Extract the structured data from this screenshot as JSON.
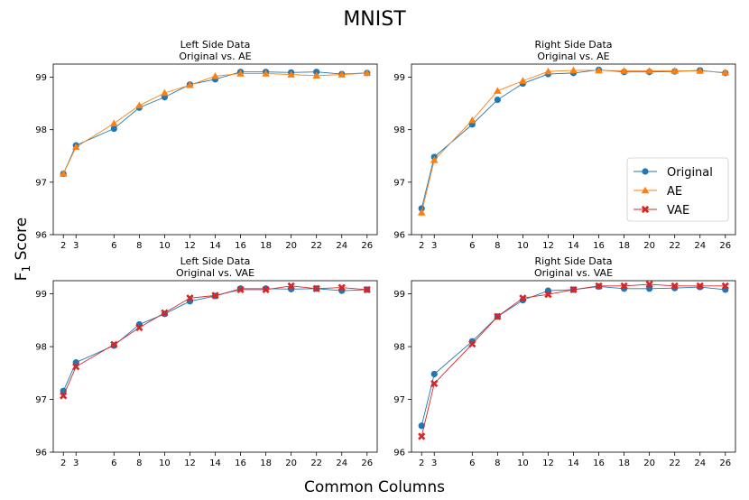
{
  "figure": {
    "title": "MNIST",
    "xlabel": "Common Columns",
    "ylabel_main": "F",
    "ylabel_sub": "1",
    "ylabel_rest": " Score"
  },
  "colors": {
    "Original": "#1f77b4",
    "AE": "#ff7f0e",
    "VAE": "#d62728"
  },
  "chart_data": [
    {
      "type": "line",
      "title_line1": "Left Side Data",
      "title_line2": "Original vs. AE",
      "x": [
        2,
        3,
        6,
        8,
        10,
        12,
        14,
        16,
        18,
        20,
        22,
        24,
        26
      ],
      "xticks": [
        2,
        3,
        6,
        8,
        10,
        12,
        14,
        16,
        18,
        20,
        22,
        24,
        26
      ],
      "xlim": [
        1.2,
        26.8
      ],
      "ylim": [
        96,
        99.25
      ],
      "yticks": [
        96,
        97,
        98,
        99
      ],
      "legend": false,
      "series": [
        {
          "name": "Original",
          "marker": "circle",
          "values": [
            97.16,
            97.7,
            98.02,
            98.42,
            98.62,
            98.86,
            98.96,
            99.1,
            99.1,
            99.09,
            99.1,
            99.06,
            99.08
          ]
        },
        {
          "name": "AE",
          "marker": "triangle",
          "values": [
            97.16,
            97.67,
            98.12,
            98.46,
            98.7,
            98.85,
            99.02,
            99.07,
            99.07,
            99.05,
            99.03,
            99.05,
            99.08
          ]
        }
      ]
    },
    {
      "type": "line",
      "title_line1": "Right Side Data",
      "title_line2": "Original vs. AE",
      "x": [
        2,
        3,
        6,
        8,
        10,
        12,
        14,
        16,
        18,
        20,
        22,
        24,
        26
      ],
      "xticks": [
        2,
        3,
        6,
        8,
        10,
        12,
        14,
        16,
        18,
        20,
        22,
        24,
        26
      ],
      "xlim": [
        1.2,
        26.8
      ],
      "ylim": [
        96,
        99.25
      ],
      "yticks": [
        96,
        97,
        98,
        99
      ],
      "legend": true,
      "series": [
        {
          "name": "Original",
          "marker": "circle",
          "values": [
            96.5,
            97.48,
            98.1,
            98.57,
            98.88,
            99.06,
            99.08,
            99.14,
            99.1,
            99.1,
            99.11,
            99.13,
            99.08
          ]
        },
        {
          "name": "AE",
          "marker": "triangle",
          "values": [
            96.42,
            97.42,
            98.18,
            98.74,
            98.93,
            99.11,
            99.13,
            99.13,
            99.12,
            99.12,
            99.12,
            99.12,
            99.09
          ]
        }
      ]
    },
    {
      "type": "line",
      "title_line1": "Left Side Data",
      "title_line2": "Original vs. VAE",
      "x": [
        2,
        3,
        6,
        8,
        10,
        12,
        14,
        16,
        18,
        20,
        22,
        24,
        26
      ],
      "xticks": [
        2,
        3,
        6,
        8,
        10,
        12,
        14,
        16,
        18,
        20,
        22,
        24,
        26
      ],
      "xlim": [
        1.2,
        26.8
      ],
      "ylim": [
        96,
        99.25
      ],
      "yticks": [
        96,
        97,
        98,
        99
      ],
      "legend": false,
      "series": [
        {
          "name": "Original",
          "marker": "circle",
          "values": [
            97.16,
            97.7,
            98.02,
            98.42,
            98.62,
            98.86,
            98.96,
            99.1,
            99.1,
            99.09,
            99.1,
            99.06,
            99.08
          ]
        },
        {
          "name": "VAE",
          "marker": "x",
          "values": [
            97.07,
            97.62,
            98.04,
            98.36,
            98.64,
            98.92,
            98.97,
            99.08,
            99.08,
            99.15,
            99.1,
            99.12,
            99.08
          ]
        }
      ]
    },
    {
      "type": "line",
      "title_line1": "Right Side Data",
      "title_line2": "Original vs. VAE",
      "x": [
        2,
        3,
        6,
        8,
        10,
        12,
        14,
        16,
        18,
        20,
        22,
        24,
        26
      ],
      "xticks": [
        2,
        3,
        6,
        8,
        10,
        12,
        14,
        16,
        18,
        20,
        22,
        24,
        26
      ],
      "xlim": [
        1.2,
        26.8
      ],
      "ylim": [
        96,
        99.25
      ],
      "yticks": [
        96,
        97,
        98,
        99
      ],
      "legend": false,
      "series": [
        {
          "name": "Original",
          "marker": "circle",
          "values": [
            96.5,
            97.48,
            98.1,
            98.57,
            98.88,
            99.06,
            99.08,
            99.14,
            99.1,
            99.1,
            99.11,
            99.13,
            99.08
          ]
        },
        {
          "name": "VAE",
          "marker": "x",
          "values": [
            96.3,
            97.3,
            98.05,
            98.57,
            98.92,
            98.99,
            99.08,
            99.15,
            99.15,
            99.18,
            99.15,
            99.15,
            99.15
          ]
        }
      ]
    }
  ]
}
